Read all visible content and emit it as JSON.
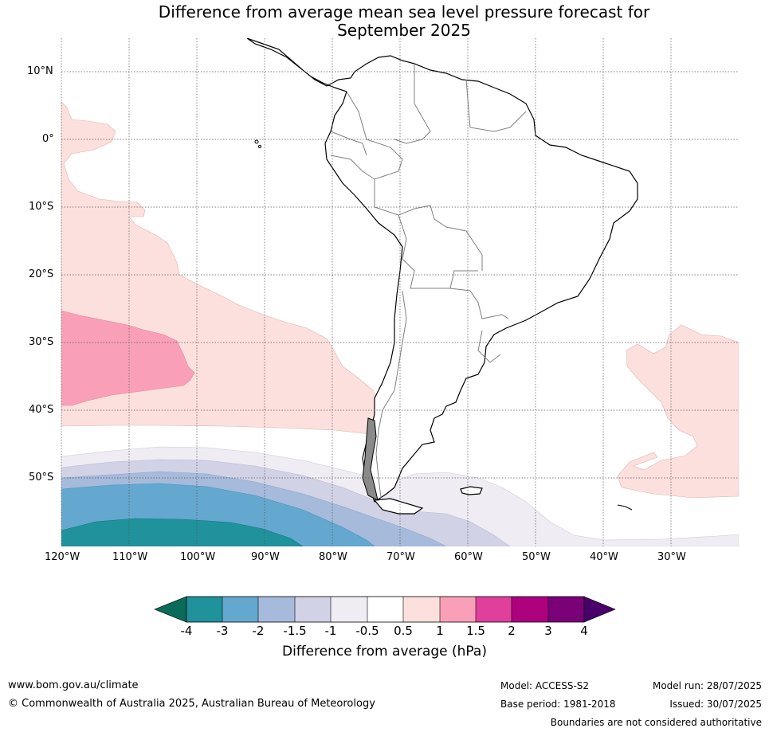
{
  "title_line1": "Difference from average mean sea level pressure forecast for",
  "title_line2": "September 2025",
  "latitude_labels": [
    "10°N",
    "0°",
    "10°S",
    "20°S",
    "30°S",
    "40°S",
    "50°S"
  ],
  "longitude_labels": [
    "120°W",
    "110°W",
    "100°W",
    "90°W",
    "80°W",
    "70°W",
    "60°W",
    "50°W",
    "40°W",
    "30°W"
  ],
  "colorbar": {
    "title": "Difference from average (hPa)",
    "tick_labels": [
      "-4",
      "-3",
      "-2",
      "-1.5",
      "-1",
      "-0.5",
      "0.5",
      "1",
      "1.5",
      "2",
      "3",
      "4"
    ],
    "colors": {
      "below_min": "#0b6b5a",
      "minus4_minus3": "#1f929b",
      "minus3_minus2": "#65a8cf",
      "minus2_minus1_5": "#a6badb",
      "minus1_5_minus1": "#d2d2e6",
      "minus1_minus0_5": "#efecf3",
      "neutral": "#ffffff",
      "plus0_5_plus1": "#fce0dd",
      "plus1_plus1_5": "#f9a0b8",
      "plus1_5_plus2": "#e03f9c",
      "plus2_plus3": "#ae017e",
      "plus3_plus4": "#7a0177",
      "above_max": "#49006a"
    }
  },
  "footer": {
    "website": "www.bom.gov.au/climate",
    "copyright": "© Commonwealth of Australia 2025, Australian Bureau of Meteorology",
    "model": "Model: ACCESS-S2",
    "base_period": "Base period: 1981-2018",
    "model_run": "Model run: 28/07/2025",
    "issued": "Issued: 30/07/2025",
    "disclaimer": "Boundaries are not considered authoritative"
  }
}
